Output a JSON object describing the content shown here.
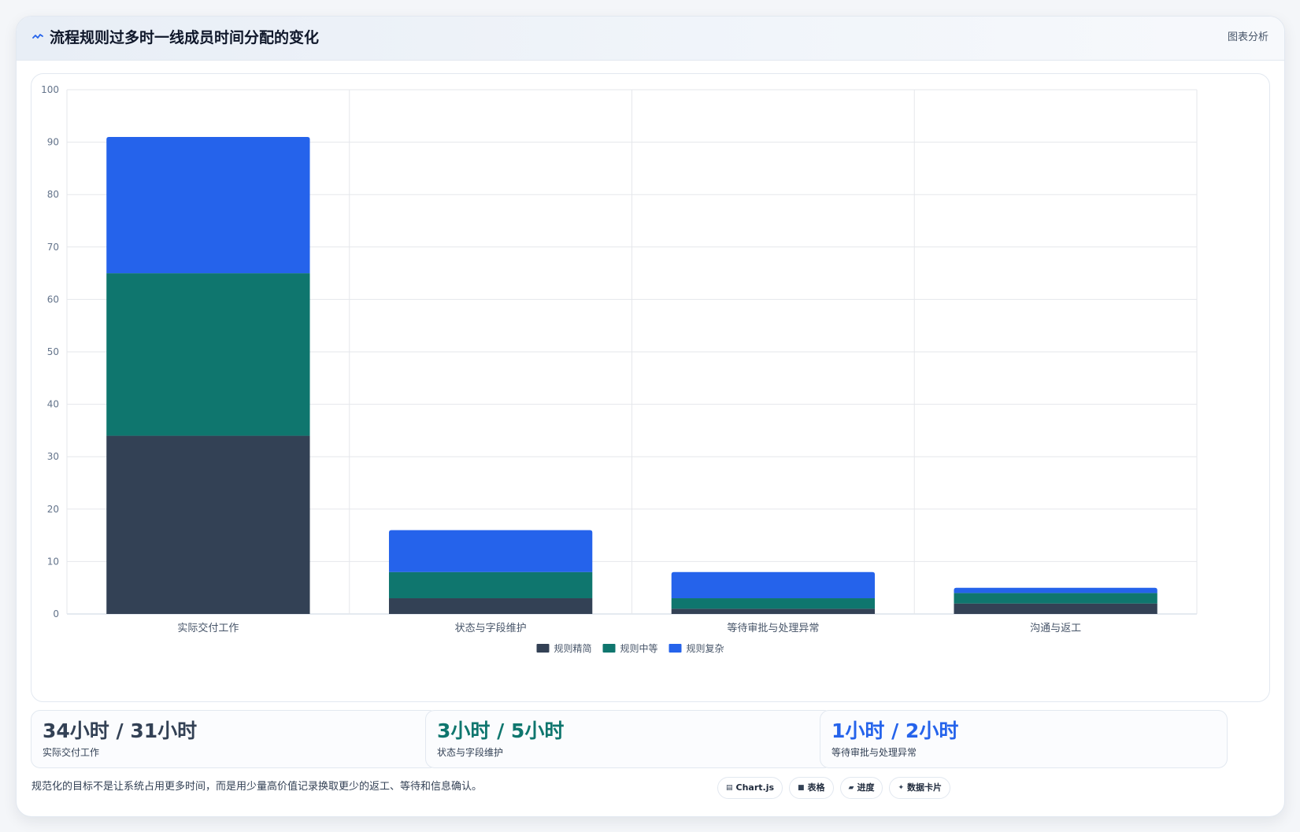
{
  "header": {
    "title": "流程规则过多时一线成员时间分配的变化",
    "tag": "图表分析",
    "icon": "wave-icon"
  },
  "chart_data": {
    "type": "bar",
    "stacked": true,
    "categories": [
      "实际交付工作",
      "状态与字段维护",
      "等待审批与处理异常",
      "沟通与返工"
    ],
    "series": [
      {
        "name": "规则精简",
        "color": "#334155",
        "values": [
          34,
          3,
          1,
          2
        ]
      },
      {
        "name": "规则中等",
        "color": "#0f766e",
        "values": [
          31,
          5,
          2,
          2
        ]
      },
      {
        "name": "规则复杂",
        "color": "#2563eb",
        "values": [
          26,
          8,
          5,
          1
        ]
      }
    ],
    "ylim": [
      0,
      100
    ],
    "yticks": [
      0,
      10,
      20,
      30,
      40,
      50,
      60,
      70,
      80,
      90,
      100
    ],
    "title": "",
    "xlabel": "",
    "ylabel": "",
    "grid": true,
    "legend": "bottom-center"
  },
  "stats": [
    {
      "value": "34小时 / 31小时",
      "label": "实际交付工作",
      "color": "#334155"
    },
    {
      "value": "3小时 / 5小时",
      "label": "状态与字段维护",
      "color": "#0f766e"
    },
    {
      "value": "1小时 / 2小时",
      "label": "等待审批与处理异常",
      "color": "#2563eb"
    }
  ],
  "note": "规范化的目标不是让系统占用更多时间，而是用少量高价值记录换取更少的返工、等待和信息确认。",
  "chips": [
    {
      "icon": "▤",
      "label": "Chart.js",
      "icon_name": "chart-icon"
    },
    {
      "icon": "■",
      "label": "表格",
      "icon_name": "table-icon"
    },
    {
      "icon": "▰",
      "label": "进度",
      "icon_name": "progress-icon"
    },
    {
      "icon": "✦",
      "label": "数据卡片",
      "icon_name": "sparkle-icon"
    }
  ]
}
